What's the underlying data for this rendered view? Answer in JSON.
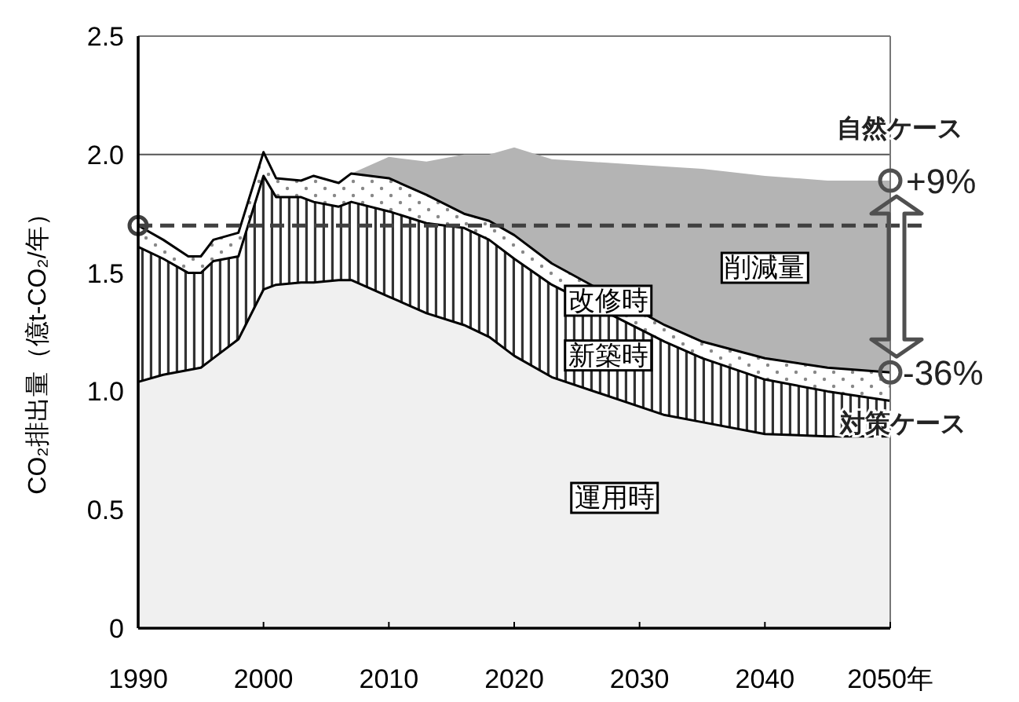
{
  "chart_data": {
    "type": "area",
    "stacked": true,
    "ylabel": "CO₂排出量（億t-CO₂/年）",
    "x": [
      1990,
      1992,
      1994,
      1995,
      1996,
      1998,
      2000,
      2001,
      2003,
      2004,
      2006,
      2007,
      2010,
      2013,
      2016,
      2018,
      2020,
      2023,
      2032,
      2035,
      2040,
      2045,
      2050
    ],
    "series": [
      {
        "name": "運用時",
        "color": "#f0f0f0",
        "values": [
          1.04,
          1.07,
          1.09,
          1.1,
          1.14,
          1.22,
          1.43,
          1.45,
          1.46,
          1.46,
          1.47,
          1.47,
          1.4,
          1.33,
          1.28,
          1.23,
          1.15,
          1.06,
          0.9,
          0.87,
          0.82,
          0.81,
          0.81
        ]
      },
      {
        "name": "新築時",
        "color": "#ffffff",
        "values": [
          0.57,
          0.49,
          0.41,
          0.4,
          0.41,
          0.35,
          0.48,
          0.37,
          0.36,
          0.34,
          0.31,
          0.33,
          0.36,
          0.38,
          0.41,
          0.41,
          0.41,
          0.39,
          0.31,
          0.27,
          0.23,
          0.19,
          0.15
        ]
      },
      {
        "name": "改修時",
        "color": "#ffffff",
        "values": [
          0.09,
          0.08,
          0.07,
          0.07,
          0.09,
          0.1,
          0.1,
          0.08,
          0.07,
          0.11,
          0.1,
          0.12,
          0.14,
          0.12,
          0.06,
          0.08,
          0.1,
          0.09,
          0.07,
          0.07,
          0.09,
          0.1,
          0.12
        ]
      },
      {
        "name": "削減量",
        "color": "#b4b4b4",
        "values": [
          null,
          null,
          null,
          null,
          null,
          null,
          null,
          null,
          null,
          null,
          null,
          0,
          0.09,
          0.14,
          0.25,
          0.28,
          0.37,
          0.44,
          0.67,
          0.73,
          0.77,
          0.79,
          0.81
        ]
      }
    ],
    "xlim": [
      1990,
      2050
    ],
    "xticks": [
      1990,
      2000,
      2010,
      2020,
      2030,
      2040,
      {
        "value": 2050,
        "label": "2050年"
      }
    ],
    "ylim": [
      0,
      2.5
    ],
    "yticks": [
      0,
      0.5,
      {
        "value": 1,
        "label": "1.0"
      },
      1.5,
      {
        "value": 2,
        "label": "2.0"
      },
      2.5
    ],
    "grid": "y",
    "ref_lines": [
      {
        "axis": "y",
        "value": 1.7,
        "color": "#404040",
        "line_style": "dashed"
      }
    ],
    "annotations": [
      "自然ケース",
      "+9%",
      "-36%",
      "対策ケース"
    ]
  }
}
